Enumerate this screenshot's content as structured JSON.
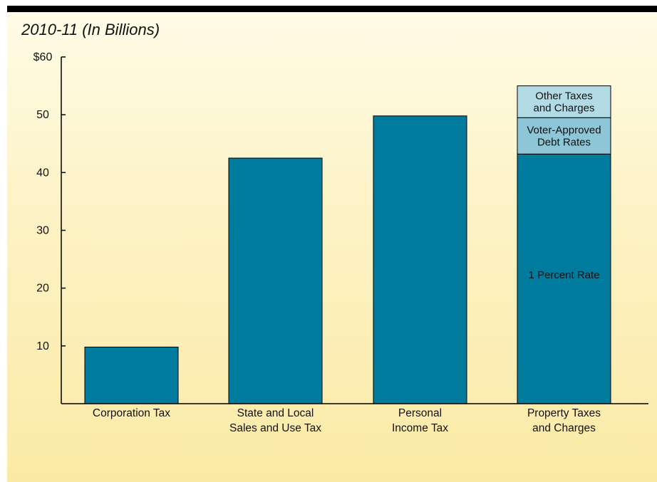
{
  "subtitle": "2010-11 (In Billions)",
  "chart_data": {
    "type": "bar",
    "stacked": true,
    "title": "",
    "subtitle": "2010-11 (In Billions)",
    "xlabel": "",
    "ylabel": "",
    "ylim": [
      0,
      60
    ],
    "yticks": [
      10,
      20,
      30,
      40,
      50,
      60
    ],
    "ytick_labels": [
      "10",
      "20",
      "30",
      "40",
      "50",
      "$60"
    ],
    "grid": false,
    "legend": "none",
    "categories": [
      [
        "Corporation Tax"
      ],
      [
        "State and Local",
        "Sales and Use Tax"
      ],
      [
        "Personal",
        "Income Tax"
      ],
      [
        "Property Taxes",
        "and Charges"
      ]
    ],
    "series": [
      {
        "name": "1 Percent Rate",
        "label_lines": [
          "1 Percent Rate"
        ],
        "color": "#007b9e",
        "values": [
          9.8,
          42.5,
          49.8,
          43.2
        ]
      },
      {
        "name": "Voter-Approved Debt Rates",
        "label_lines": [
          "Voter-Approved",
          "Debt Rates"
        ],
        "color": "#8dc6d6",
        "values": [
          0,
          0,
          0,
          6.3
        ]
      },
      {
        "name": "Other Taxes and Charges",
        "label_lines": [
          "Other Taxes",
          "and Charges"
        ],
        "color": "#b3dbe6",
        "values": [
          0,
          0,
          0,
          5.5
        ]
      }
    ],
    "segment_labels_bar_index": 3
  },
  "colors": {
    "background_top": "#fefce6",
    "background_bottom": "#fbeaa6",
    "bar_primary": "#007b9e",
    "bar_secondary": "#8dc6d6",
    "bar_tertiary": "#b3dbe6",
    "axis": "#000000"
  }
}
